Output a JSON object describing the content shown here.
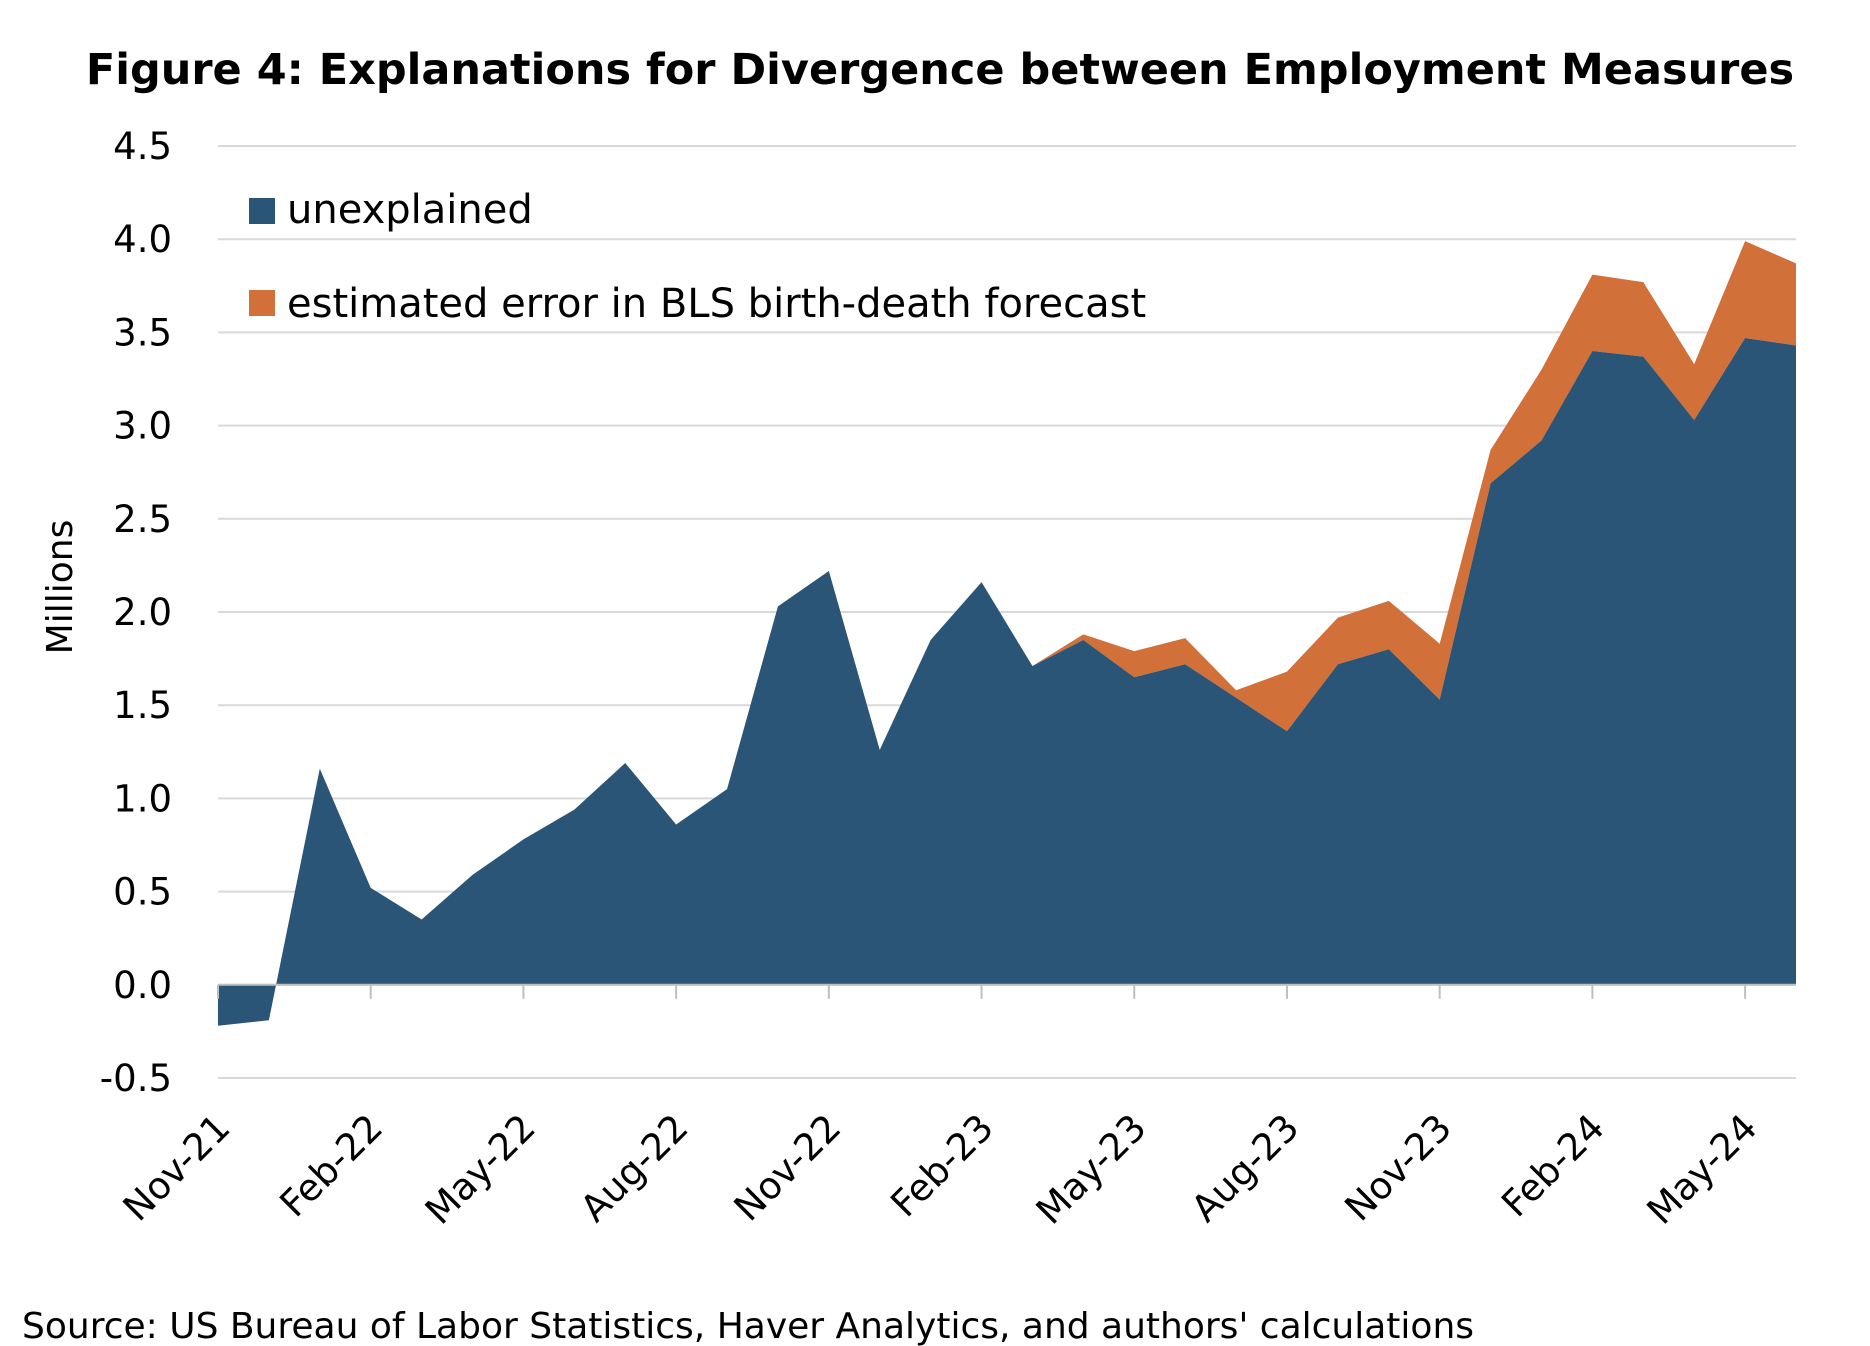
{
  "chart_data": {
    "type": "area",
    "stacked": true,
    "title": "Figure 4: Explanations for Divergence between Employment Measures",
    "ylabel": "Millions",
    "xlabel": "",
    "ylim": [
      -0.5,
      4.5
    ],
    "yticks": [
      "4.5",
      "4.0",
      "3.5",
      "3.0",
      "2.5",
      "2.0",
      "1.5",
      "1.0",
      "0.5",
      "0.0",
      "-0.5"
    ],
    "ytick_values": [
      4.5,
      4.0,
      3.5,
      3.0,
      2.5,
      2.0,
      1.5,
      1.0,
      0.5,
      0.0,
      -0.5
    ],
    "grid": "horizontal",
    "legend_position": "top-left",
    "x": [
      "Nov-21",
      "Dec-21",
      "Jan-22",
      "Feb-22",
      "Mar-22",
      "Apr-22",
      "May-22",
      "Jun-22",
      "Jul-22",
      "Aug-22",
      "Sep-22",
      "Oct-22",
      "Nov-22",
      "Dec-22",
      "Jan-23",
      "Feb-23",
      "Mar-23",
      "Apr-23",
      "May-23",
      "Jun-23",
      "Jul-23",
      "Aug-23",
      "Sep-23",
      "Oct-23",
      "Nov-23",
      "Dec-23",
      "Jan-24",
      "Feb-24",
      "Mar-24",
      "Apr-24",
      "May-24",
      "Jun-24"
    ],
    "x_tick_labels": [
      "Nov-21",
      "Feb-22",
      "May-22",
      "Aug-22",
      "Nov-22",
      "Feb-23",
      "May-23",
      "Aug-23",
      "Nov-23",
      "Feb-24",
      "May-24"
    ],
    "series": [
      {
        "name": "unexplained",
        "color": "#2b5576",
        "values": [
          -0.22,
          -0.19,
          1.16,
          0.52,
          0.35,
          0.59,
          0.78,
          0.94,
          1.19,
          0.86,
          1.05,
          2.03,
          2.22,
          1.26,
          1.85,
          2.16,
          1.71,
          1.85,
          1.65,
          1.72,
          1.54,
          1.36,
          1.72,
          1.8,
          1.53,
          2.69,
          2.92,
          3.4,
          3.37,
          3.03,
          3.47,
          3.43
        ]
      },
      {
        "name": "estimated error in BLS birth-death forecast",
        "color": "#d2703a",
        "values": [
          0,
          0,
          0,
          0,
          0,
          0,
          0,
          0,
          0,
          0,
          0,
          0,
          0,
          0,
          0,
          0,
          0,
          0.03,
          0.14,
          0.14,
          0.04,
          0.32,
          0.25,
          0.26,
          0.3,
          0.18,
          0.38,
          0.41,
          0.4,
          0.3,
          0.52,
          0.44
        ]
      }
    ]
  },
  "source": "Source:  US Bureau of Labor Statistics, Haver Analytics, and authors' calculations"
}
